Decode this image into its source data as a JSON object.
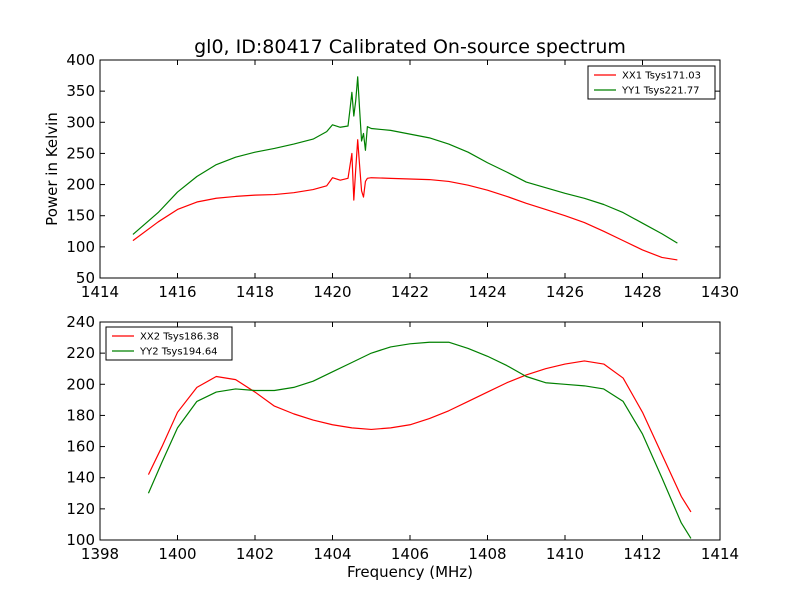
{
  "title": "gl0, ID:80417 Calibrated On-source spectrum",
  "colors": {
    "red": "#ff0000",
    "green": "#008000"
  },
  "chart_data": [
    {
      "type": "line",
      "ylabel": "Power in Kelvin",
      "xlabel": "",
      "xlim": [
        1414,
        1430
      ],
      "ylim": [
        50,
        400
      ],
      "xticks": [
        1414,
        1416,
        1418,
        1420,
        1422,
        1424,
        1426,
        1428,
        1430
      ],
      "yticks": [
        50,
        100,
        150,
        200,
        250,
        300,
        350,
        400
      ],
      "legend": "top-right",
      "series": [
        {
          "name": "XX1 Tsys171.03",
          "color": "#ff0000",
          "x": [
            1414.85,
            1415.5,
            1416.0,
            1416.5,
            1417.0,
            1417.5,
            1418.0,
            1418.5,
            1419.0,
            1419.5,
            1419.85,
            1420.0,
            1420.2,
            1420.4,
            1420.5,
            1420.55,
            1420.6,
            1420.65,
            1420.7,
            1420.75,
            1420.8,
            1420.85,
            1420.9,
            1421.0,
            1421.5,
            1422.0,
            1422.5,
            1423.0,
            1423.5,
            1424.0,
            1424.5,
            1425.0,
            1425.5,
            1426.0,
            1426.5,
            1427.0,
            1427.5,
            1428.0,
            1428.5,
            1428.9
          ],
          "values": [
            110,
            140,
            160,
            172,
            178,
            181,
            183,
            184,
            187,
            192,
            198,
            211,
            207,
            210,
            250,
            175,
            225,
            272,
            230,
            190,
            180,
            205,
            210,
            211,
            210,
            209,
            208,
            205,
            199,
            191,
            181,
            170,
            160,
            150,
            139,
            125,
            110,
            95,
            83,
            79
          ]
        },
        {
          "name": "YY1 Tsys221.77",
          "color": "#008000",
          "x": [
            1414.85,
            1415.5,
            1416.0,
            1416.5,
            1417.0,
            1417.5,
            1418.0,
            1418.5,
            1419.0,
            1419.5,
            1419.85,
            1420.0,
            1420.2,
            1420.4,
            1420.45,
            1420.5,
            1420.55,
            1420.6,
            1420.65,
            1420.7,
            1420.75,
            1420.8,
            1420.85,
            1420.9,
            1421.0,
            1421.5,
            1422.0,
            1422.5,
            1423.0,
            1423.5,
            1424.0,
            1424.5,
            1425.0,
            1425.5,
            1426.0,
            1426.5,
            1427.0,
            1427.5,
            1428.0,
            1428.5,
            1428.9
          ],
          "values": [
            120,
            155,
            188,
            213,
            232,
            244,
            252,
            258,
            265,
            273,
            285,
            296,
            292,
            294,
            320,
            348,
            310,
            335,
            373,
            320,
            270,
            282,
            255,
            293,
            290,
            287,
            281,
            275,
            265,
            252,
            235,
            220,
            204,
            195,
            186,
            178,
            168,
            155,
            138,
            121,
            106
          ]
        }
      ]
    },
    {
      "type": "line",
      "ylabel": "",
      "xlabel": "Frequency (MHz)",
      "xlim": [
        1398,
        1414
      ],
      "ylim": [
        100,
        240
      ],
      "xticks": [
        1398,
        1400,
        1402,
        1404,
        1406,
        1408,
        1410,
        1412,
        1414
      ],
      "yticks": [
        100,
        120,
        140,
        160,
        180,
        200,
        220,
        240
      ],
      "legend": "top-left",
      "series": [
        {
          "name": "XX2 Tsys186.38",
          "color": "#ff0000",
          "x": [
            1399.25,
            1399.6,
            1400.0,
            1400.5,
            1401.0,
            1401.5,
            1402.0,
            1402.5,
            1403.0,
            1403.5,
            1404.0,
            1404.5,
            1405.0,
            1405.5,
            1406.0,
            1406.5,
            1407.0,
            1407.5,
            1408.0,
            1408.5,
            1409.0,
            1409.5,
            1410.0,
            1410.5,
            1411.0,
            1411.5,
            1412.0,
            1412.5,
            1413.0,
            1413.25
          ],
          "values": [
            142,
            160,
            182,
            198,
            205,
            203,
            195,
            186,
            181,
            177,
            174,
            172,
            171,
            172,
            174,
            178,
            183,
            189,
            195,
            201,
            206,
            210,
            213,
            215,
            213,
            204,
            182,
            155,
            128,
            118
          ]
        },
        {
          "name": "YY2 Tsys194.64",
          "color": "#008000",
          "x": [
            1399.25,
            1399.6,
            1400.0,
            1400.5,
            1401.0,
            1401.5,
            1402.0,
            1402.5,
            1403.0,
            1403.5,
            1404.0,
            1404.5,
            1405.0,
            1405.5,
            1406.0,
            1406.5,
            1407.0,
            1407.5,
            1408.0,
            1408.5,
            1409.0,
            1409.5,
            1410.0,
            1410.5,
            1411.0,
            1411.5,
            1412.0,
            1412.5,
            1413.0,
            1413.25
          ],
          "values": [
            130,
            150,
            172,
            189,
            195,
            197,
            196,
            196,
            198,
            202,
            208,
            214,
            220,
            224,
            226,
            227,
            227,
            223,
            218,
            212,
            205,
            201,
            200,
            199,
            197,
            189,
            168,
            140,
            111,
            101
          ]
        }
      ]
    }
  ]
}
